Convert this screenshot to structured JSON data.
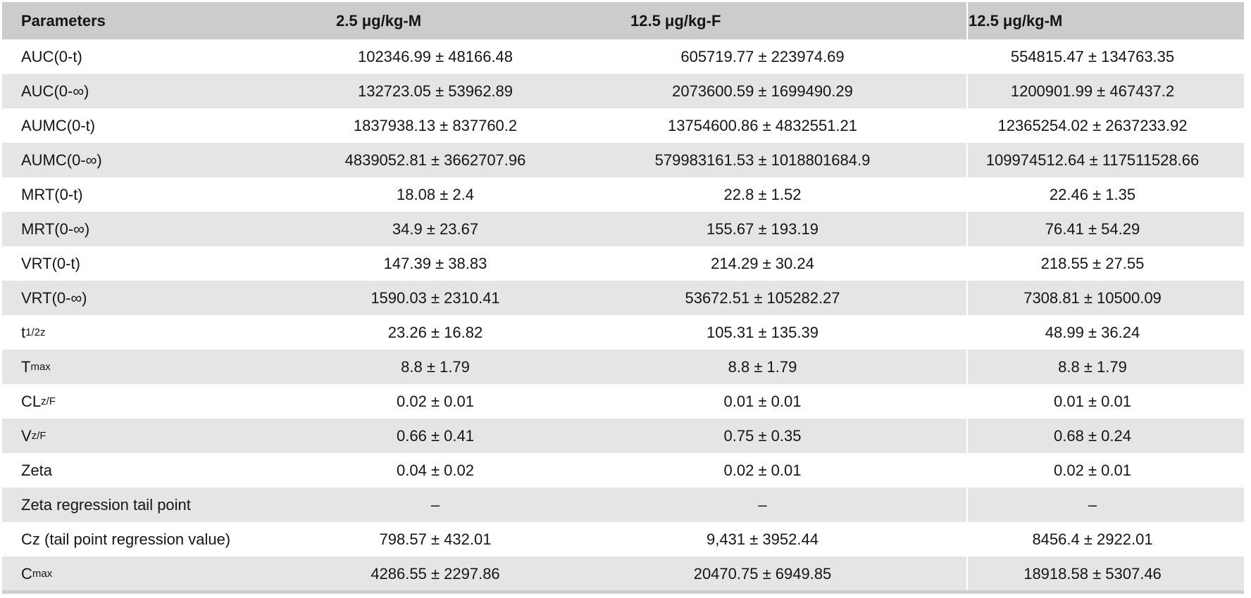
{
  "table": {
    "headers": [
      "Parameters",
      "2.5 μg/kg-M",
      "12.5 μg/kg-F",
      "12.5 μg/kg-M"
    ],
    "rows": [
      {
        "param": "AUC(0-t)",
        "sub": "",
        "values": [
          "102346.99 ± 48166.48",
          "605719.77 ± 223974.69",
          "554815.47 ± 134763.35"
        ]
      },
      {
        "param": "AUC(0-∞)",
        "sub": "",
        "values": [
          "132723.05 ± 53962.89",
          "2073600.59 ± 1699490.29",
          "1200901.99 ± 467437.2"
        ]
      },
      {
        "param": "AUMC(0-t)",
        "sub": "",
        "values": [
          "1837938.13 ± 837760.2",
          "13754600.86 ± 4832551.21",
          "12365254.02 ± 2637233.92"
        ]
      },
      {
        "param": "AUMC(0-∞)",
        "sub": "",
        "values": [
          "4839052.81 ± 3662707.96",
          "579983161.53 ± 1018801684.9",
          "109974512.64 ± 117511528.66"
        ]
      },
      {
        "param": "MRT(0-t)",
        "sub": "",
        "values": [
          "18.08 ± 2.4",
          "22.8 ± 1.52",
          "22.46 ± 1.35"
        ]
      },
      {
        "param": "MRT(0-∞)",
        "sub": "",
        "values": [
          "34.9 ± 23.67",
          "155.67 ± 193.19",
          "76.41 ± 54.29"
        ]
      },
      {
        "param": "VRT(0-t)",
        "sub": "",
        "values": [
          "147.39 ± 38.83",
          "214.29 ± 30.24",
          "218.55 ± 27.55"
        ]
      },
      {
        "param": "VRT(0-∞)",
        "sub": "",
        "values": [
          "1590.03 ± 2310.41",
          "53672.51 ± 105282.27",
          "7308.81 ± 10500.09"
        ]
      },
      {
        "param": "t",
        "sub": "1/2z",
        "values": [
          "23.26 ± 16.82",
          "105.31 ± 135.39",
          "48.99 ± 36.24"
        ]
      },
      {
        "param": "T",
        "sub": "max",
        "values": [
          "8.8 ± 1.79",
          "8.8 ± 1.79",
          "8.8 ± 1.79"
        ]
      },
      {
        "param": "CL",
        "sub": "z/F",
        "values": [
          "0.02 ± 0.01",
          "0.01 ± 0.01",
          "0.01 ± 0.01"
        ]
      },
      {
        "param": "V",
        "sub": "z/F",
        "values": [
          "0.66 ± 0.41",
          "0.75 ± 0.35",
          "0.68 ± 0.24"
        ]
      },
      {
        "param": "Zeta",
        "sub": "",
        "values": [
          "0.04 ± 0.02",
          "0.02 ± 0.01",
          "0.02 ± 0.01"
        ]
      },
      {
        "param": "Zeta regression tail point",
        "sub": "",
        "values": [
          "–",
          "–",
          "–"
        ]
      },
      {
        "param": "Cz (tail point regression value)",
        "sub": "",
        "values": [
          "798.57 ± 432.01",
          "9,431 ± 3952.44",
          "8456.4 ± 2922.01"
        ]
      },
      {
        "param": "C",
        "sub": "max",
        "values": [
          "4286.55 ± 2297.86",
          "20470.75 ± 6949.85",
          "18918.58 ± 5307.46"
        ]
      }
    ]
  }
}
